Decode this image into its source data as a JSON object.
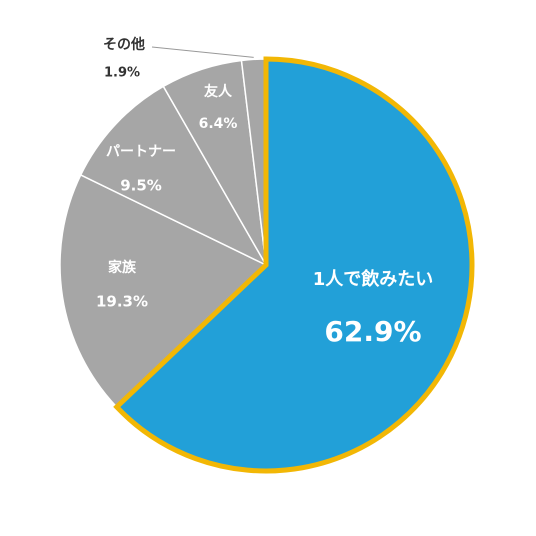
{
  "chart_data": {
    "type": "pie",
    "categories": [
      "1人で飲みたい",
      "家族",
      "パートナー",
      "友人",
      "その他"
    ],
    "values": [
      62.9,
      19.3,
      9.5,
      6.4,
      1.9
    ],
    "value_labels": [
      "62.9%",
      "19.3%",
      "9.5%",
      "6.4%",
      "1.9%"
    ],
    "colors": [
      "#22a0d8",
      "#a6a6a6",
      "#a6a6a6",
      "#a6a6a6",
      "#a6a6a6"
    ],
    "highlight_border": "#f2b705"
  }
}
